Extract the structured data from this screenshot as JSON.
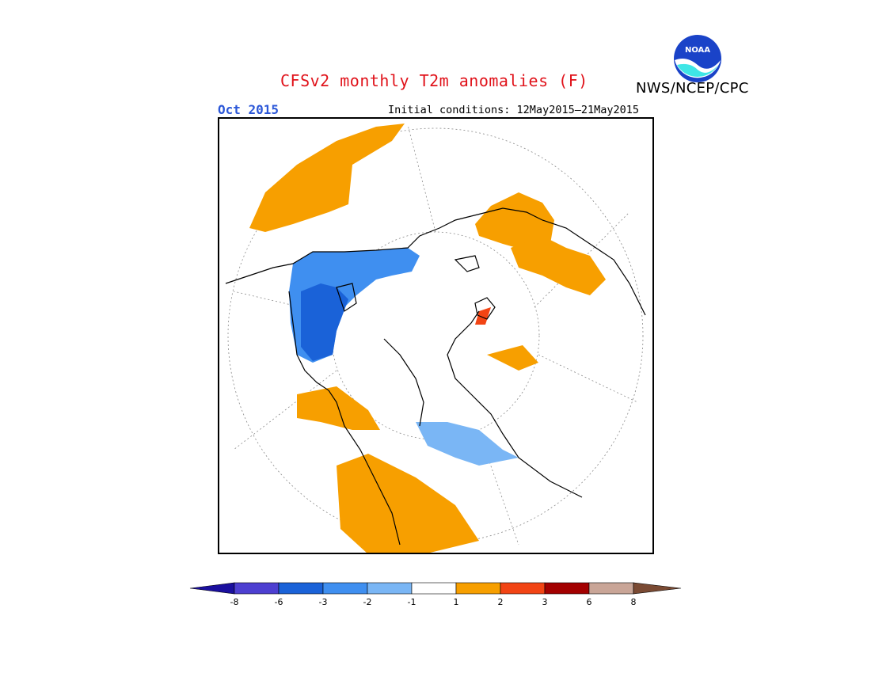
{
  "header": {
    "title": "CFSv2 monthly T2m anomalies (F)",
    "valid_month": "Oct 2015",
    "initial_conditions": "Initial conditions: 12May2015–21May2015",
    "organization": "NWS/NCEP/CPC",
    "logo_text": "NOAA"
  },
  "colors": {
    "title": "#e0121a",
    "valid_month": "#2b57d8",
    "logo_blue": "#1a43c8",
    "logo_cyan": "#3fe6e6",
    "coast": "#000000",
    "graticule": "#8a8a8a"
  },
  "map": {
    "projection": "north-polar-stereographic",
    "variable": "2m temperature anomaly",
    "units": "F",
    "anomaly_regions": [
      {
        "region": "northeast Pacific / Gulf of Alaska",
        "category": "1 to 2",
        "color": "#f79f00"
      },
      {
        "region": "western and southern Russia",
        "category": "1 to 2",
        "color": "#f79f00"
      },
      {
        "region": "northwestern Russia",
        "category": "1 to 2",
        "color": "#f79f00"
      },
      {
        "region": "northern Europe (Scandinavia)",
        "category": "2 to 3",
        "color": "#f24414"
      },
      {
        "region": "western Canada / Alaska",
        "category": "-2 to -3",
        "color": "#3f8ff0"
      },
      {
        "region": "Hudson Bay / central Canada",
        "category": "-3 to -6",
        "color": "#1a62d8"
      },
      {
        "region": "eastern Europe",
        "category": "-1 to -2",
        "color": "#7ab6f5"
      },
      {
        "region": "eastern US / Atlantic",
        "category": "1 to 2",
        "color": "#f79f00"
      },
      {
        "region": "Mediterranean / North Africa",
        "category": "1 to 2",
        "color": "#f79f00"
      }
    ]
  },
  "colorbar": {
    "tick_labels": [
      "-8",
      "-6",
      "-3",
      "-2",
      "-1",
      "1",
      "2",
      "3",
      "6",
      "8"
    ],
    "bins": [
      {
        "color": "#1a0f9e",
        "range": "< -8"
      },
      {
        "color": "#4d3fd1",
        "range": "-8 to -6"
      },
      {
        "color": "#1a62d8",
        "range": "-6 to -3"
      },
      {
        "color": "#3f8ff0",
        "range": "-3 to -2"
      },
      {
        "color": "#7ab6f5",
        "range": "-2 to -1"
      },
      {
        "color": "#ffffff",
        "range": "-1 to 1"
      },
      {
        "color": "#f79f00",
        "range": "1 to 2"
      },
      {
        "color": "#f24414",
        "range": "2 to 3"
      },
      {
        "color": "#a30000",
        "range": "3 to 6"
      },
      {
        "color": "#c9a597",
        "range": "6 to 8"
      },
      {
        "color": "#7a4a33",
        "range": "> 8"
      }
    ]
  }
}
